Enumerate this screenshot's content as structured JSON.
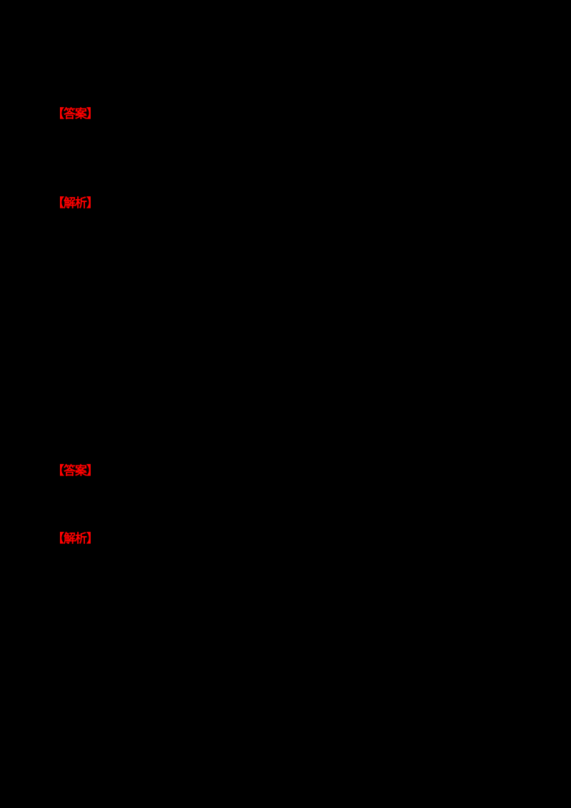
{
  "page": {
    "background_color": "#000000",
    "marker_color": "#FF0000"
  },
  "markers": [
    {
      "label": "answer-marker-1",
      "text": "【答案】"
    },
    {
      "label": "analysis-marker-1",
      "text": "【解析】"
    },
    {
      "label": "answer-marker-2",
      "text": "【答案】"
    },
    {
      "label": "analysis-marker-2",
      "text": "【解析】"
    }
  ]
}
